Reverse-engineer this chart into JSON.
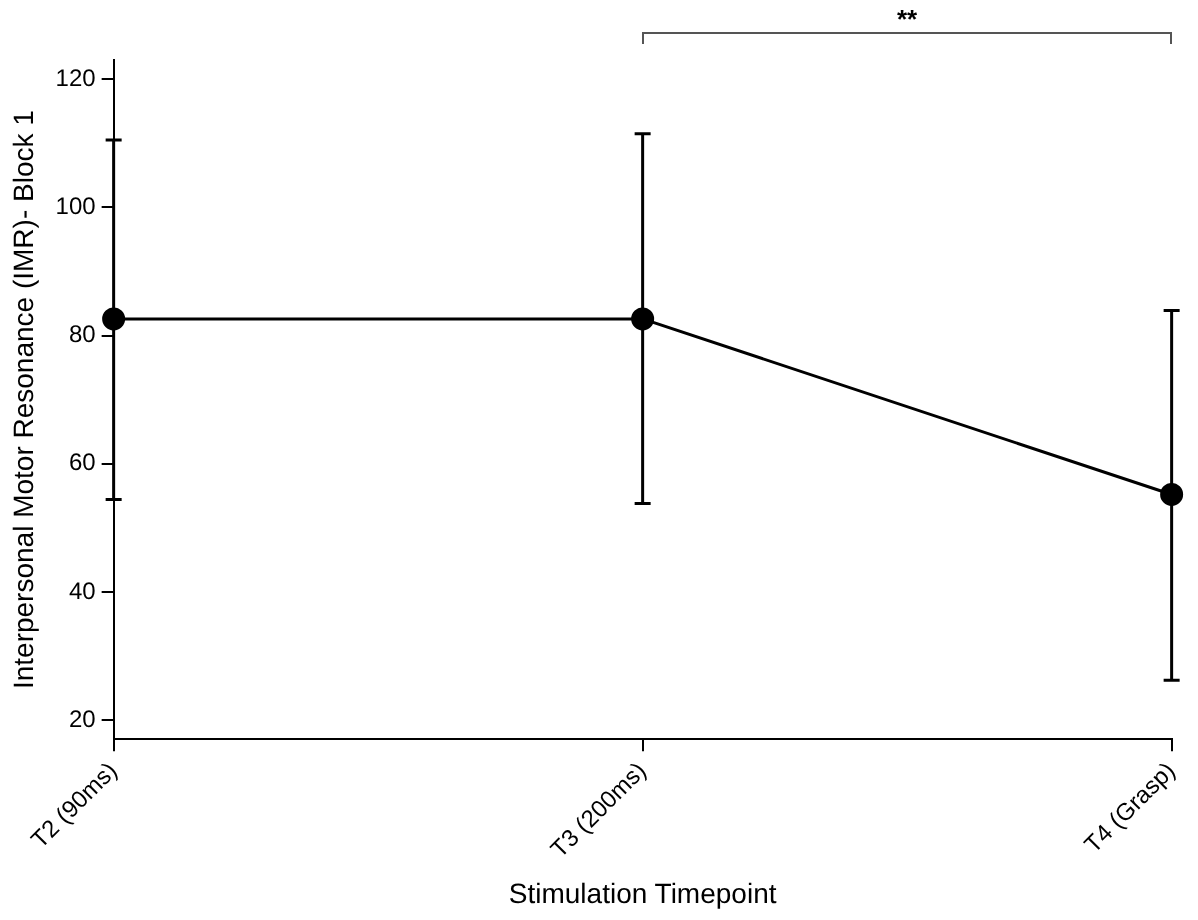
{
  "chart_data": {
    "type": "line",
    "xlabel": "Stimulation Timepoint",
    "ylabel": "Interpersonal Motor Resonance (IMR)- Block 1",
    "categories": [
      "T2 (90ms)",
      "T3 (200ms)",
      "T4 (Grasp)"
    ],
    "series": [
      {
        "color": "#000000",
        "values": [
          82.6,
          82.6,
          55.2
        ],
        "errors": [
          [
            54.4,
            110.5
          ],
          [
            53.8,
            111.5
          ],
          [
            26.2,
            83.9
          ]
        ]
      }
    ],
    "ylim": [
      17,
      123
    ],
    "yticks": [
      20,
      40,
      60,
      80,
      100,
      120
    ],
    "grid": false,
    "legend": false,
    "marker": "circle",
    "line_style": "solid",
    "annotations": [
      "**"
    ]
  }
}
